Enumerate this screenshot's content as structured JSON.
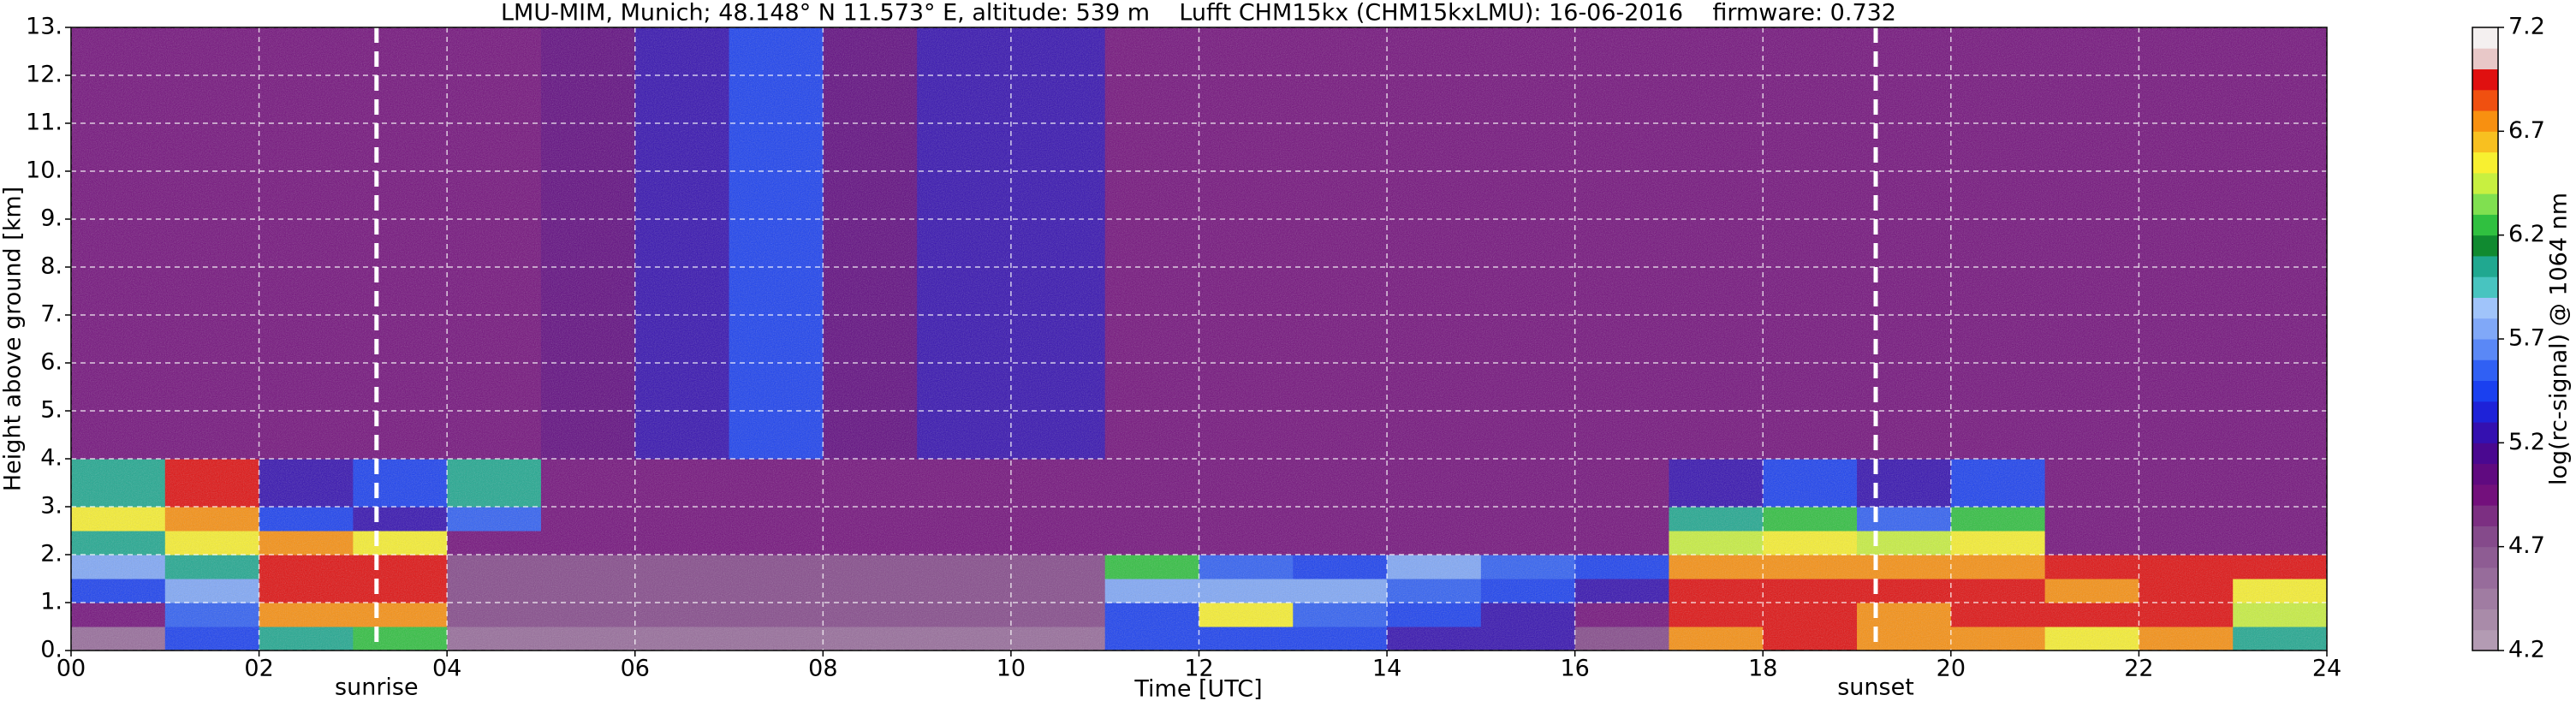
{
  "chart_data": {
    "type": "heatmap",
    "title": "LMU-MIM, Munich; 48.148° N 11.573° E, altitude: 539 m    Lufft CHM15kx (CHM15kxLMU): 16-06-2016    firmware: 0.732",
    "xlabel": "Time [UTC]",
    "ylabel": "Height above ground [km]",
    "xlim": [
      0,
      24
    ],
    "ylim": [
      0,
      13
    ],
    "xticks": [
      {
        "value": 0,
        "label": "00"
      },
      {
        "value": 2,
        "label": "02"
      },
      {
        "value": 4,
        "label": "04"
      },
      {
        "value": 6,
        "label": "06"
      },
      {
        "value": 8,
        "label": "08"
      },
      10,
      12,
      14,
      16,
      18,
      20,
      22,
      24
    ],
    "yticks": [
      {
        "value": 0,
        "label": "0."
      },
      {
        "value": 1,
        "label": "1."
      },
      {
        "value": 2,
        "label": "2."
      },
      {
        "value": 3,
        "label": "3."
      },
      {
        "value": 4,
        "label": "4."
      },
      {
        "value": 5,
        "label": "5."
      },
      {
        "value": 6,
        "label": "6."
      },
      {
        "value": 7,
        "label": "7."
      },
      {
        "value": 8,
        "label": "8."
      },
      {
        "value": 9,
        "label": "9."
      },
      {
        "value": 10,
        "label": "10."
      },
      {
        "value": 11,
        "label": "11."
      },
      {
        "value": 12,
        "label": "12."
      },
      {
        "value": 13,
        "label": "13."
      }
    ],
    "grid": true,
    "x_edges": [
      0,
      1,
      2,
      3,
      4,
      5,
      6,
      7,
      8,
      9,
      10,
      11,
      12,
      13,
      14,
      15,
      16,
      17,
      18,
      19,
      20,
      21,
      22,
      23,
      24
    ],
    "y_edges": [
      0,
      0.5,
      1,
      1.5,
      2,
      2.5,
      3,
      4,
      13
    ],
    "z": [
      [
        4.6,
        5.0,
        5.5,
        5.8,
        6.0,
        6.6,
        6.0,
        5.0
      ],
      [
        5.5,
        5.6,
        5.8,
        6.0,
        6.5,
        6.8,
        7.0,
        5.0
      ],
      [
        6.0,
        6.7,
        6.9,
        7.0,
        6.8,
        5.5,
        5.2,
        5.0
      ],
      [
        6.2,
        6.8,
        6.9,
        7.0,
        6.6,
        5.2,
        5.5,
        5.0
      ],
      [
        4.6,
        4.7,
        4.7,
        4.8,
        5.0,
        5.6,
        6.0,
        5.0
      ],
      [
        4.6,
        4.7,
        4.7,
        4.8,
        4.9,
        5.0,
        5.0,
        5.1
      ],
      [
        4.6,
        4.7,
        4.7,
        4.8,
        4.9,
        5.0,
        5.0,
        5.2
      ],
      [
        4.6,
        4.7,
        4.7,
        4.8,
        4.9,
        5.0,
        5.0,
        5.5
      ],
      [
        4.6,
        4.7,
        4.7,
        4.8,
        4.9,
        5.0,
        5.0,
        5.1
      ],
      [
        4.6,
        4.7,
        4.7,
        4.8,
        4.9,
        5.0,
        5.0,
        5.3
      ],
      [
        4.6,
        4.7,
        4.7,
        4.8,
        4.9,
        5.0,
        5.0,
        5.2
      ],
      [
        5.4,
        5.5,
        5.8,
        6.2,
        5.0,
        5.0,
        5.0,
        5.0
      ],
      [
        5.5,
        6.5,
        5.8,
        5.6,
        5.0,
        5.0,
        5.0,
        5.0
      ],
      [
        5.4,
        5.6,
        5.8,
        5.5,
        5.0,
        5.0,
        5.0,
        5.0
      ],
      [
        5.3,
        5.4,
        5.6,
        5.7,
        5.0,
        5.0,
        5.0,
        5.0
      ],
      [
        5.2,
        5.3,
        5.5,
        5.6,
        5.0,
        5.0,
        5.0,
        5.0
      ],
      [
        4.8,
        5.0,
        5.3,
        5.5,
        4.9,
        5.0,
        5.0,
        5.0
      ],
      [
        6.8,
        7.0,
        6.9,
        6.7,
        6.4,
        6.0,
        5.3,
        5.0
      ],
      [
        6.9,
        7.0,
        7.0,
        6.8,
        6.5,
        6.2,
        5.5,
        5.0
      ],
      [
        6.7,
        6.8,
        6.9,
        6.7,
        6.4,
        5.6,
        5.2,
        5.0
      ],
      [
        6.8,
        7.0,
        6.9,
        6.7,
        6.5,
        6.2,
        5.4,
        5.0
      ],
      [
        6.6,
        6.9,
        6.8,
        7.0,
        4.9,
        5.0,
        5.0,
        5.0
      ],
      [
        6.8,
        6.9,
        7.0,
        7.0,
        4.9,
        5.0,
        5.0,
        5.0
      ],
      [
        6.0,
        6.4,
        6.6,
        6.9,
        4.9,
        5.0,
        5.0,
        5.0
      ]
    ],
    "annotations": [
      {
        "text": "sunrise",
        "x": 3.25
      },
      {
        "text": "sunset",
        "x": 19.2
      }
    ],
    "colorbar": {
      "label": "log(rc-signal) @ 1064 nm",
      "clim": [
        4.2,
        7.2
      ],
      "ticks": [
        4.2,
        4.7,
        5.2,
        5.7,
        6.2,
        6.7,
        7.2
      ],
      "colors": [
        "#b39bb3",
        "#a98ba9",
        "#a07ca2",
        "#976c9b",
        "#8e5c93",
        "#854a8b",
        "#7c2f82",
        "#73107c",
        "#600a80",
        "#4a0890",
        "#3410b0",
        "#1e22d8",
        "#1a40f0",
        "#3060f4",
        "#5a88f6",
        "#80a8f8",
        "#a0c4fa",
        "#48c4c0",
        "#20a890",
        "#108a30",
        "#30c040",
        "#80e050",
        "#c8f040",
        "#f8f030",
        "#f8c020",
        "#f89010",
        "#f05010",
        "#e01010",
        "#e8c8c8",
        "#f4f0f0"
      ]
    }
  }
}
